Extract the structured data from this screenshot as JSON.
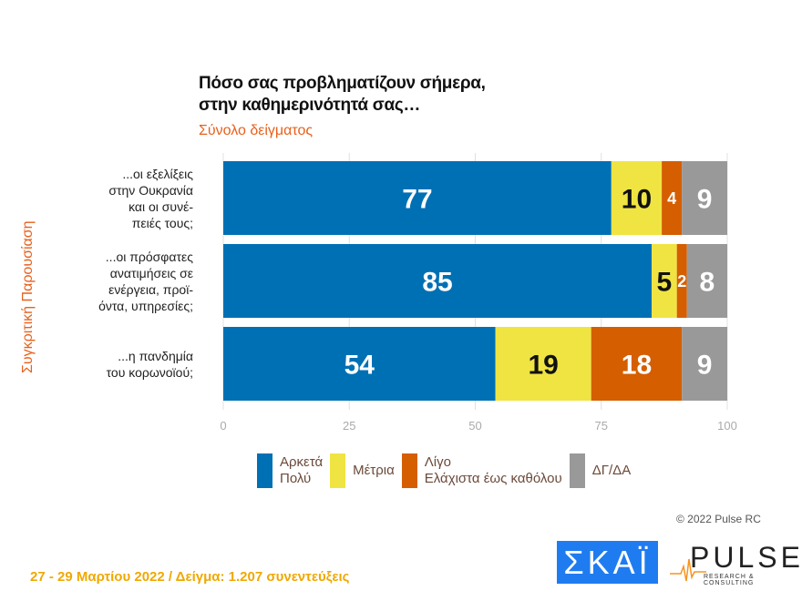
{
  "chart_data": {
    "type": "bar",
    "orientation": "horizontal",
    "stacked": true,
    "title": "Πόσο σας προβληματίζουν σήμερα,\nστην καθημερινότητά σας…",
    "subtitle": "Σύνολο δείγματος",
    "ylabel": "Συγκριτική  Παρουσίαση",
    "categories": [
      "...οι εξελίξεις\nστην Ουκρανία\nκαι οι συνέ-\nπειές τους;",
      "...οι πρόσφατες\nανατιμήσεις σε\nενέργεια, προϊ-\nόντα, υπηρεσίες;",
      "...η πανδημία\nτου κορωνοϊού;"
    ],
    "series": [
      {
        "name": "Αρκετά\nΠολύ",
        "color": "#0070b4",
        "text_color": "#ffffff",
        "values": [
          77,
          85,
          54
        ]
      },
      {
        "name": "Μέτρια",
        "color": "#f0e442",
        "text_color": "#111111",
        "values": [
          10,
          5,
          19
        ]
      },
      {
        "name": "Λίγο\nΕλάχιστα έως καθόλου",
        "color": "#d55e00",
        "text_color": "#ffffff",
        "values": [
          4,
          2,
          18
        ]
      },
      {
        "name": "ΔΓ/ΔΑ",
        "color": "#999999",
        "text_color": "#ffffff",
        "values": [
          9,
          8,
          9
        ]
      }
    ],
    "xlim": [
      0,
      100
    ],
    "xticks": [
      "0",
      "25",
      "50",
      "75",
      "100"
    ],
    "grid": true,
    "legend_position": "bottom"
  },
  "copyright": "© 2022 Pulse RC",
  "footer": "27 - 29  Μαρτίου  2022  /  Δείγμα:  1.207 συνεντεύξεις",
  "logos": {
    "skai": "ΣΚΑΪ",
    "pulse": "PULSE",
    "pulse_sub": "RESEARCH & CONSULTING"
  }
}
